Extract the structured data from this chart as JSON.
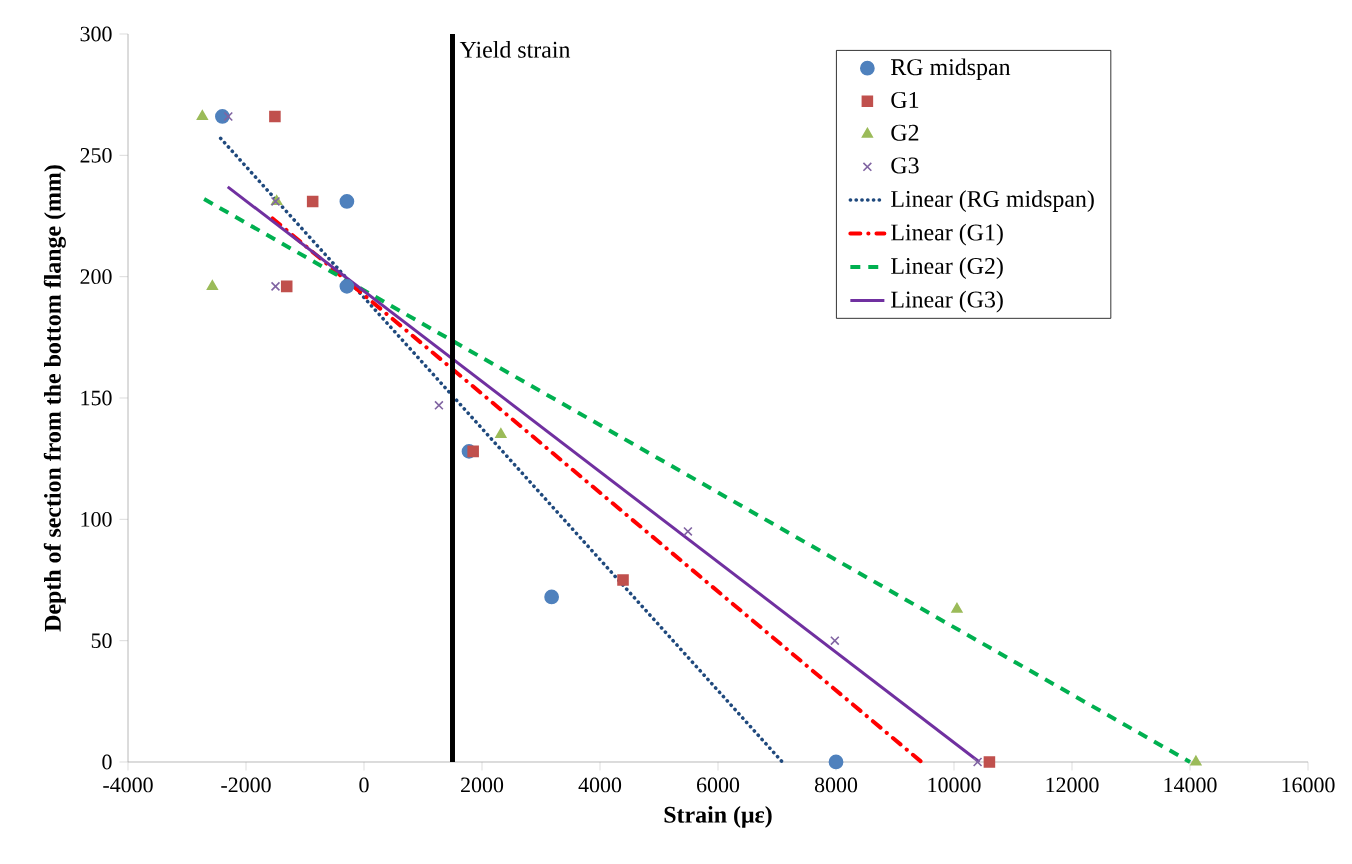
{
  "chart_data": {
    "type": "scatter",
    "xlabel": "Strain (με)",
    "ylabel": "Depth of section  from the bottom flange (mm)",
    "xlim": [
      -4000,
      16000
    ],
    "xticks": [
      -4000,
      -2000,
      0,
      2000,
      4000,
      6000,
      8000,
      10000,
      12000,
      14000,
      16000
    ],
    "ylim": [
      0,
      300
    ],
    "yticks": [
      0,
      50,
      100,
      150,
      200,
      250,
      300
    ],
    "grid": false,
    "legend": "top right",
    "series": [
      {
        "name": "RG midspan",
        "marker": "circle",
        "color": "#4f81bd",
        "x": [
          -2400,
          -290,
          -290,
          1780,
          3180,
          8000
        ],
        "values": [
          266,
          231,
          196,
          128,
          68,
          0
        ]
      },
      {
        "name": "G1",
        "marker": "square",
        "color": "#c0504d",
        "x": [
          -1510,
          -870,
          -1310,
          1850,
          4390,
          10600
        ],
        "values": [
          266,
          231,
          196,
          128,
          75,
          0
        ]
      },
      {
        "name": "G2",
        "marker": "triangle",
        "color": "#9bbb59",
        "x": [
          -2740,
          -1480,
          -2570,
          2320,
          10050,
          14100
        ],
        "values": [
          266,
          231,
          196,
          135,
          63,
          0
        ]
      },
      {
        "name": "G3",
        "marker": "cross",
        "color": "#8064a2",
        "x": [
          -2300,
          -1500,
          -1500,
          1270,
          5490,
          7980,
          10400
        ],
        "values": [
          266,
          231,
          196,
          147,
          95,
          50,
          0
        ]
      },
      {
        "name": "Linear (RG midspan)",
        "type": "line",
        "marker": "none",
        "line_style": "dotted",
        "color": "#1f497d",
        "x": [
          -2430,
          7090
        ],
        "values": [
          257,
          0
        ]
      },
      {
        "name": "Linear (G1)",
        "type": "line",
        "marker": "none",
        "line_style": "dashdot",
        "color": "#ff0000",
        "x": [
          -1550,
          9450
        ],
        "values": [
          224,
          0
        ]
      },
      {
        "name": "Linear (G2)",
        "type": "line",
        "marker": "none",
        "line_style": "dashed",
        "color": "#00b050",
        "x": [
          -2710,
          14000
        ],
        "values": [
          232,
          0
        ]
      },
      {
        "name": "Linear (G3)",
        "type": "line",
        "marker": "none",
        "line_style": "solid",
        "color": "#7030a0",
        "x": [
          -2310,
          10430
        ],
        "values": [
          237,
          0
        ]
      }
    ],
    "ref_lines": [
      {
        "axis": "x",
        "value": 1500,
        "label": "Yield strain",
        "color": "#000000"
      }
    ]
  }
}
